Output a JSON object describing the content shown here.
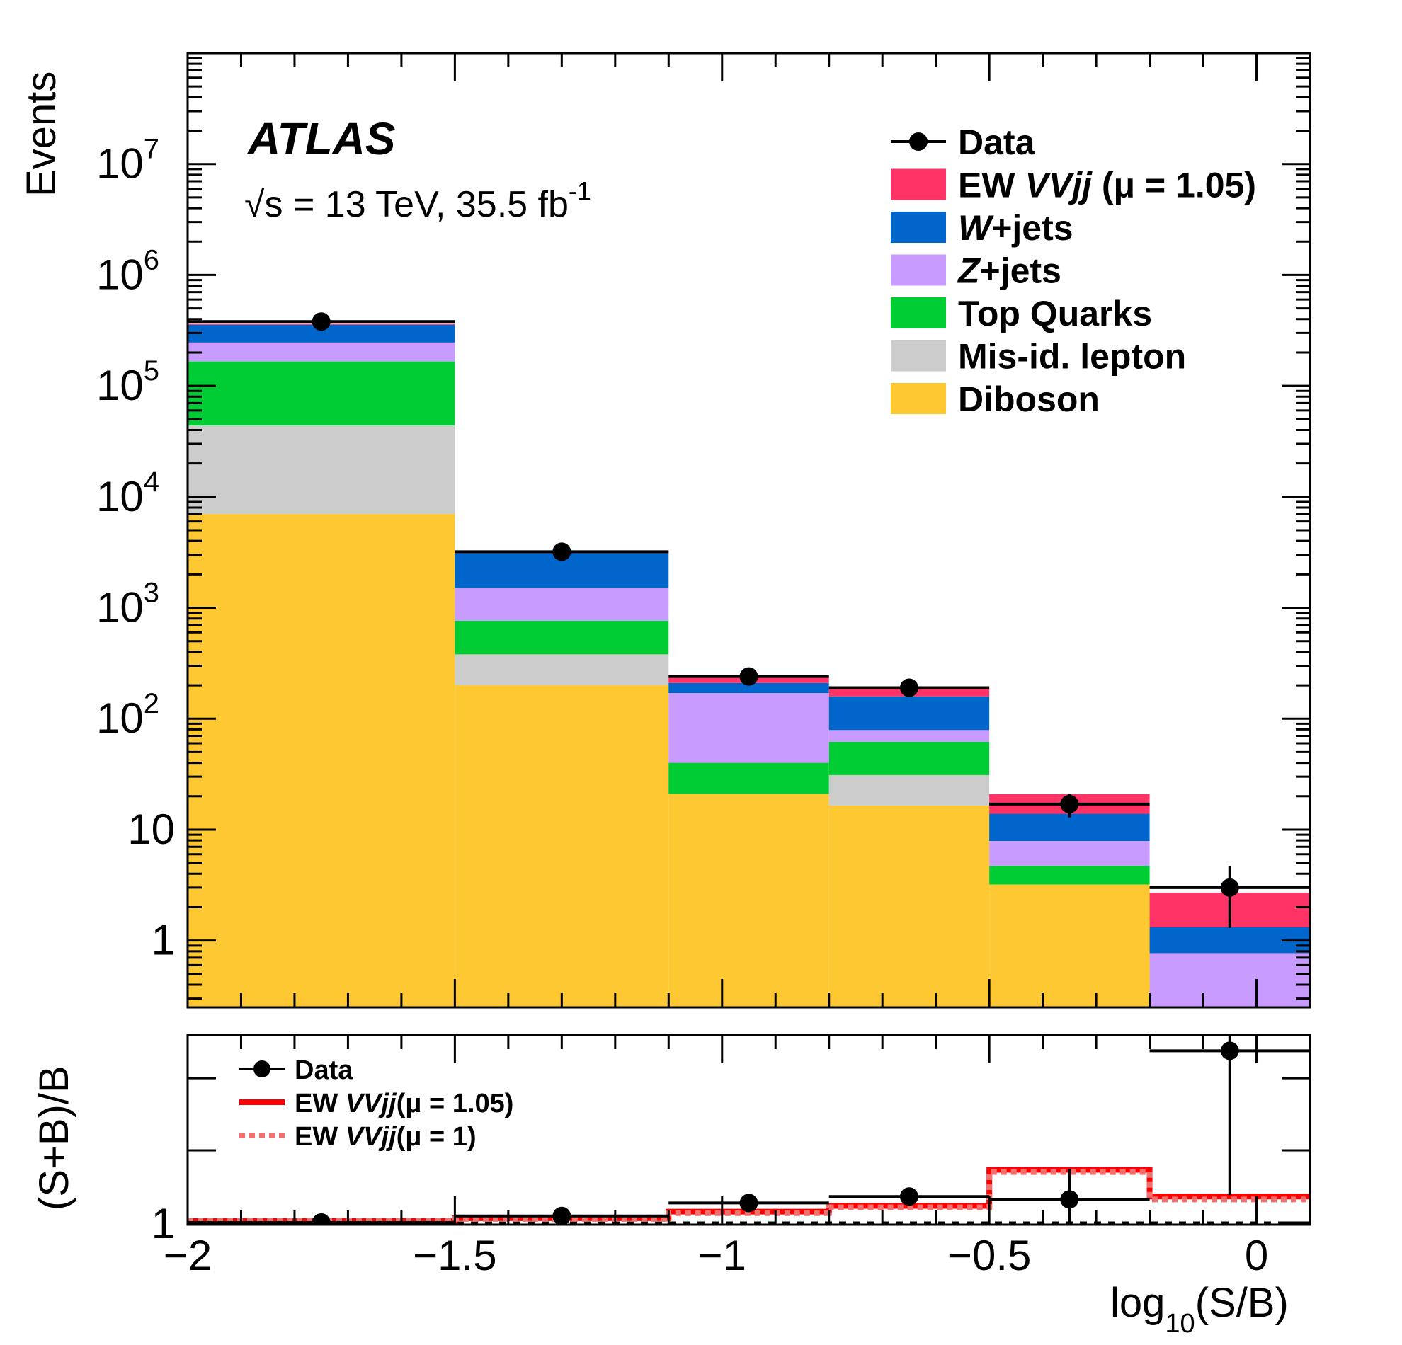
{
  "chart_data": {
    "type": "bar",
    "stacked": true,
    "histogram": true,
    "experiment": "ATLAS",
    "energy_label": "√s = 13 TeV, 35.5 fb⁻¹",
    "energy_parts": {
      "sqrt_s": "√s = 13 TeV, 35.5 fb",
      "superscript": "-1"
    },
    "xlabel": "log10(S/B)",
    "xlabel_parts": {
      "base": "log",
      "sub": "10",
      "rest": "(S/B)"
    },
    "ylabel": "Events",
    "ratio_ylabel": "(S+B)/B",
    "x_bin_edges": [
      -2.0,
      -1.5,
      -1.1,
      -0.8,
      -0.5,
      -0.2,
      0.1
    ],
    "xlim": [
      -2.0,
      0.1
    ],
    "ylim": [
      0.25,
      100000000
    ],
    "yscale": "log",
    "x_ticks": [
      -2,
      -1.5,
      -1,
      -0.5,
      0
    ],
    "x_tick_labels": [
      "−2",
      "−1.5",
      "−1",
      "−0.5",
      "0"
    ],
    "y_ticks": [
      {
        "value": 1,
        "label": "1"
      },
      {
        "value": 10,
        "label": "10"
      },
      {
        "value": 100,
        "base": "10",
        "exp": "2"
      },
      {
        "value": 1000,
        "base": "10",
        "exp": "3"
      },
      {
        "value": 10000,
        "base": "10",
        "exp": "4"
      },
      {
        "value": 100000,
        "base": "10",
        "exp": "5"
      },
      {
        "value": 1000000,
        "base": "10",
        "exp": "6"
      },
      {
        "value": 10000000,
        "base": "10",
        "exp": "7"
      }
    ],
    "stack_series": [
      {
        "name": "Diboson",
        "color": "#fdc832",
        "values": [
          7000,
          200,
          21,
          16.5,
          3.2,
          0.24
        ]
      },
      {
        "name": "Mis-id. lepton",
        "color": "#cccccc",
        "values": [
          37000,
          180,
          0,
          14.5,
          0,
          0
        ]
      },
      {
        "name": "Top Quarks",
        "color": "#00cc33",
        "values": [
          122000,
          385,
          19,
          31,
          1.5,
          0
        ]
      },
      {
        "name": "Z+jets",
        "color": "#c89bff",
        "values": [
          80000,
          745,
          130,
          17,
          3.2,
          0.53
        ]
      },
      {
        "name": "W+jets",
        "color": "#0066cc",
        "values": [
          110000,
          1590,
          40,
          80,
          6.0,
          0.55
        ]
      },
      {
        "name": "EW VVjj (μ = 1.05)",
        "color": "#ff3366",
        "values": [
          8000,
          170,
          30,
          35,
          7.0,
          1.38
        ]
      }
    ],
    "data_points": {
      "name": "Data",
      "x": [
        -1.75,
        -1.3,
        -0.95,
        -0.65,
        -0.35,
        -0.05
      ],
      "y": [
        380000,
        3200,
        240,
        190,
        17,
        3
      ],
      "yerr_low": [
        600,
        57,
        15.5,
        13.8,
        4.1,
        1.7
      ],
      "yerr_high": [
        600,
        57,
        15.5,
        13.8,
        4.1,
        1.7
      ]
    },
    "legend": {
      "position": "top-right",
      "entries": [
        {
          "label": "Data",
          "style": "marker"
        },
        {
          "label_parts": [
            "EW ",
            "VVjj",
            " (μ = 1.05)"
          ],
          "italic_index": 1,
          "color": "#ff3366"
        },
        {
          "label_parts": [
            "W",
            "+jets"
          ],
          "italic_index": 0,
          "color": "#0066cc"
        },
        {
          "label_parts": [
            "Z",
            "+jets"
          ],
          "italic_index": 0,
          "color": "#c89bff"
        },
        {
          "label_parts": [
            "Top Quarks"
          ],
          "italic_index": -1,
          "color": "#00cc33"
        },
        {
          "label_parts": [
            "Mis-id. lepton"
          ],
          "italic_index": -1,
          "color": "#cccccc"
        },
        {
          "label_parts": [
            "Diboson"
          ],
          "italic_index": -1,
          "color": "#fdc832"
        }
      ]
    },
    "ratio": {
      "ylabel": "(S+B)/B",
      "ylim": [
        0.97,
        3.6
      ],
      "y_tick_labels": [
        {
          "value": 1,
          "label": "1"
        }
      ],
      "reference_line": 1,
      "sb_mu105": [
        1.02,
        1.06,
        1.15,
        1.23,
        1.73,
        1.36
      ],
      "sb_mu1": [
        1.02,
        1.05,
        1.13,
        1.21,
        1.7,
        1.32
      ],
      "data_x": [
        -1.75,
        -1.3,
        -0.95,
        -0.65,
        -0.35,
        -0.05
      ],
      "data": [
        1.0,
        1.09,
        1.27,
        1.36,
        1.32,
        3.38
      ],
      "data_err": [
        0.005,
        0.02,
        0.08,
        0.1,
        0.42,
        2.0
      ],
      "legend": [
        {
          "label_parts": [
            "Data"
          ],
          "style": "marker"
        },
        {
          "label_parts": [
            "EW ",
            "VVjj",
            "(μ = 1.05)"
          ],
          "style": "solid",
          "color": "#ff0000"
        },
        {
          "label_parts": [
            "EW ",
            "VVjj",
            "(μ = 1)"
          ],
          "style": "dotted",
          "color": "#f07070"
        }
      ]
    }
  }
}
